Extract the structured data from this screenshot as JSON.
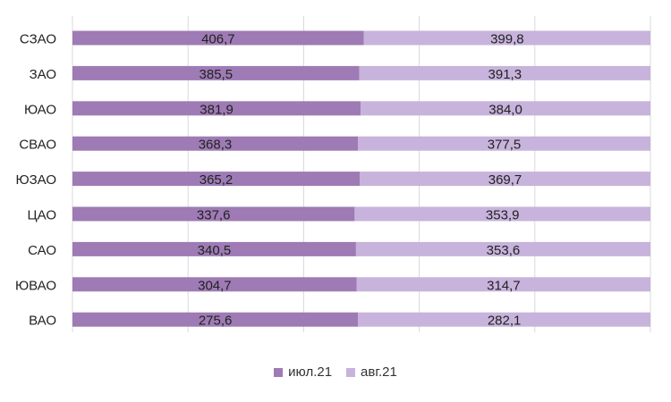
{
  "chart_data": {
    "type": "bar",
    "orientation": "horizontal",
    "stacked": "percent",
    "categories": [
      "СЗАО",
      "ЗАО",
      "ЮАО",
      "СВАО",
      "ЮЗАО",
      "ЦАО",
      "САО",
      "ЮВАО",
      "ВАО"
    ],
    "series": [
      {
        "name": "июл.21",
        "color": "#9e7bb5",
        "values": [
          406.7,
          385.5,
          381.9,
          368.3,
          365.2,
          337.6,
          340.5,
          304.7,
          275.6
        ],
        "labels": [
          "406,7",
          "385,5",
          "381,9",
          "368,3",
          "365,2",
          "337,6",
          "340,5",
          "304,7",
          "275,6"
        ]
      },
      {
        "name": "авг.21",
        "color": "#c7b3db",
        "values": [
          399.8,
          391.3,
          384.0,
          377.5,
          369.7,
          353.9,
          353.6,
          314.7,
          282.1
        ],
        "labels": [
          "399,8",
          "391,3",
          "384,0",
          "377,5",
          "369,7",
          "353,9",
          "353,6",
          "314,7",
          "282,1"
        ]
      }
    ],
    "title": "",
    "xlabel": "",
    "ylabel": "",
    "grid": true,
    "legend": "bottom"
  }
}
